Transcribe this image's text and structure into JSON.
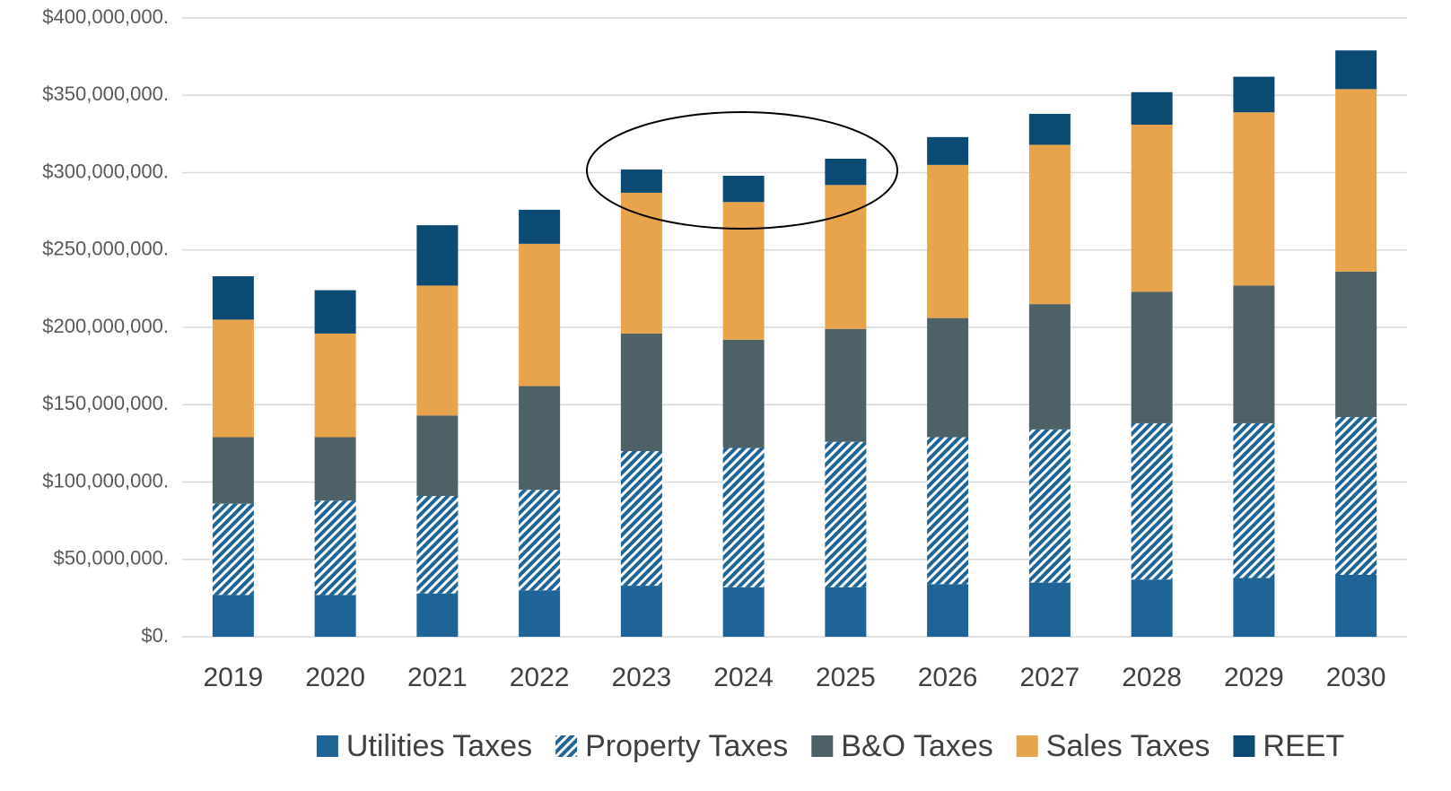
{
  "chart_data": {
    "type": "stacked_bar",
    "categories": [
      "2019",
      "2020",
      "2021",
      "2022",
      "2023",
      "2024",
      "2025",
      "2026",
      "2027",
      "2028",
      "2029",
      "2030"
    ],
    "series": [
      {
        "name": "Utilities Taxes",
        "color": "#1f6496",
        "values": [
          27000000,
          27000000,
          28000000,
          30000000,
          33000000,
          32000000,
          32000000,
          34000000,
          35000000,
          37000000,
          38000000,
          40000000
        ]
      },
      {
        "name": "Property Taxes",
        "color": "#1f6496",
        "pattern": "hatch",
        "values": [
          59000000,
          61000000,
          63000000,
          65000000,
          87000000,
          90000000,
          94000000,
          95000000,
          99000000,
          101000000,
          100000000,
          102000000
        ]
      },
      {
        "name": "B&O Taxes",
        "color": "#4d6166",
        "values": [
          43000000,
          41000000,
          52000000,
          67000000,
          76000000,
          70000000,
          73000000,
          77000000,
          81000000,
          85000000,
          89000000,
          94000000
        ]
      },
      {
        "name": "Sales Taxes",
        "color": "#e8a44c",
        "values": [
          76000000,
          67000000,
          84000000,
          92000000,
          91000000,
          89000000,
          93000000,
          99000000,
          103000000,
          108000000,
          112000000,
          118000000
        ]
      },
      {
        "name": "REET",
        "color": "#0b4a72",
        "values": [
          28000000,
          28000000,
          39000000,
          22000000,
          15000000,
          17000000,
          17000000,
          18000000,
          20000000,
          21000000,
          23000000,
          25000000
        ]
      }
    ],
    "ylim": [
      0,
      400000000
    ],
    "yticks": [
      {
        "value": 0,
        "label": "$0."
      },
      {
        "value": 50000000,
        "label": "$50,000,000."
      },
      {
        "value": 100000000,
        "label": "$100,000,000."
      },
      {
        "value": 150000000,
        "label": "$150,000,000."
      },
      {
        "value": 200000000,
        "label": "$200,000,000."
      },
      {
        "value": 250000000,
        "label": "$250,000,000."
      },
      {
        "value": 300000000,
        "label": "$300,000,000."
      },
      {
        "value": 350000000,
        "label": "$350,000,000."
      },
      {
        "value": 400000000,
        "label": "$400,000,000."
      }
    ],
    "grid": true,
    "legend": "bottom"
  }
}
